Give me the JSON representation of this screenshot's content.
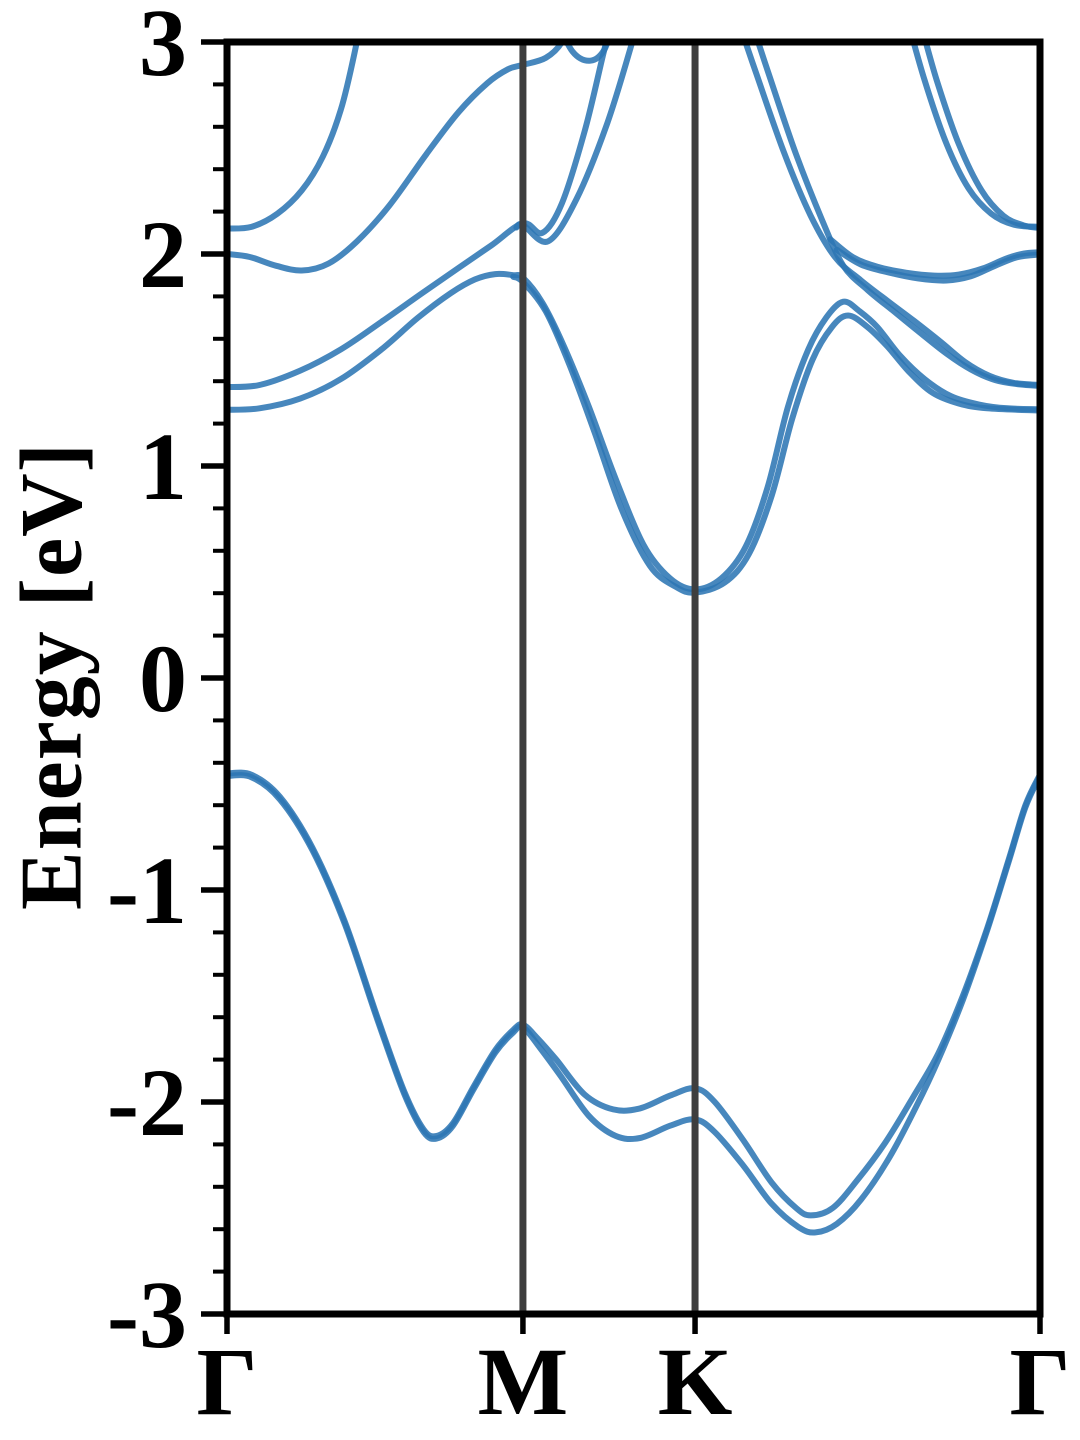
{
  "chart_data": {
    "type": "line",
    "title": "",
    "xlabel": "",
    "ylabel": "Energy [eV]",
    "ylim": [
      -3,
      3
    ],
    "grid": false,
    "legend": "none",
    "description": "Electronic band structure along the high-symmetry path Gamma-M-K-Gamma; blue spin-orbit-split bands, conduction band minimum ~0.4 eV at K, valence band maximum ~-0.45 eV at Gamma",
    "colors": {
      "band": "#2E76B4",
      "symmetry_line": "#3E3E3E",
      "axis": "#000000",
      "background": "#FFFFFF"
    },
    "band_opacity": 0.88,
    "yticks": [
      {
        "value": 3,
        "label": "3"
      },
      {
        "value": 2,
        "label": "2"
      },
      {
        "value": 1,
        "label": "1"
      },
      {
        "value": 0,
        "label": "0"
      },
      {
        "value": -1,
        "label": "-1"
      },
      {
        "value": -2,
        "label": "-2"
      },
      {
        "value": -3,
        "label": "-3"
      }
    ],
    "minor_tick_step": 0.2,
    "xticks": [
      {
        "label": "Γ",
        "x": 0
      },
      {
        "label": "M",
        "x": 0.364
      },
      {
        "label": "K",
        "x": 0.5757
      },
      {
        "label": "Γ",
        "x": 1
      }
    ],
    "vertical_lines": [
      0.364,
      0.5757
    ],
    "series": [
      {
        "name": "valence-upper",
        "points": [
          [
            0,
            -0.45
          ],
          [
            0.03,
            -0.456
          ],
          [
            0.065,
            -0.56
          ],
          [
            0.105,
            -0.8
          ],
          [
            0.145,
            -1.15
          ],
          [
            0.185,
            -1.6
          ],
          [
            0.218,
            -1.95
          ],
          [
            0.242,
            -2.13
          ],
          [
            0.258,
            -2.16
          ],
          [
            0.278,
            -2.1
          ],
          [
            0.303,
            -1.93
          ],
          [
            0.33,
            -1.755
          ],
          [
            0.352,
            -1.66
          ],
          [
            0.364,
            -1.635
          ],
          [
            0.382,
            -1.7
          ],
          [
            0.405,
            -1.8
          ],
          [
            0.44,
            -1.965
          ],
          [
            0.475,
            -2.035
          ],
          [
            0.508,
            -2.03
          ],
          [
            0.545,
            -1.97
          ],
          [
            0.5757,
            -1.935
          ],
          [
            0.6,
            -2.0
          ],
          [
            0.635,
            -2.18
          ],
          [
            0.67,
            -2.38
          ],
          [
            0.7,
            -2.5
          ],
          [
            0.718,
            -2.535
          ],
          [
            0.745,
            -2.5
          ],
          [
            0.775,
            -2.37
          ],
          [
            0.81,
            -2.19
          ],
          [
            0.845,
            -1.97
          ],
          [
            0.875,
            -1.77
          ],
          [
            0.905,
            -1.5
          ],
          [
            0.935,
            -1.18
          ],
          [
            0.962,
            -0.85
          ],
          [
            0.982,
            -0.6
          ],
          [
            1,
            -0.455
          ]
        ]
      },
      {
        "name": "valence-lower",
        "points": [
          [
            0,
            -0.462
          ],
          [
            0.03,
            -0.468
          ],
          [
            0.065,
            -0.572
          ],
          [
            0.105,
            -0.812
          ],
          [
            0.145,
            -1.162
          ],
          [
            0.185,
            -1.612
          ],
          [
            0.218,
            -1.962
          ],
          [
            0.242,
            -2.142
          ],
          [
            0.258,
            -2.172
          ],
          [
            0.278,
            -2.112
          ],
          [
            0.303,
            -1.942
          ],
          [
            0.33,
            -1.767
          ],
          [
            0.352,
            -1.672
          ],
          [
            0.364,
            -1.647
          ],
          [
            0.385,
            -1.745
          ],
          [
            0.41,
            -1.875
          ],
          [
            0.445,
            -2.065
          ],
          [
            0.478,
            -2.16
          ],
          [
            0.508,
            -2.17
          ],
          [
            0.545,
            -2.112
          ],
          [
            0.5757,
            -2.082
          ],
          [
            0.6,
            -2.142
          ],
          [
            0.635,
            -2.3
          ],
          [
            0.67,
            -2.48
          ],
          [
            0.703,
            -2.59
          ],
          [
            0.724,
            -2.615
          ],
          [
            0.75,
            -2.575
          ],
          [
            0.78,
            -2.46
          ],
          [
            0.815,
            -2.26
          ],
          [
            0.848,
            -2.02
          ],
          [
            0.875,
            -1.8
          ],
          [
            0.905,
            -1.52
          ],
          [
            0.935,
            -1.19
          ],
          [
            0.962,
            -0.86
          ],
          [
            0.982,
            -0.61
          ],
          [
            1,
            -0.462
          ]
        ]
      },
      {
        "name": "conduction1-upper",
        "points": [
          [
            0,
            1.265
          ],
          [
            0.04,
            1.272
          ],
          [
            0.09,
            1.318
          ],
          [
            0.14,
            1.41
          ],
          [
            0.19,
            1.55
          ],
          [
            0.235,
            1.7
          ],
          [
            0.275,
            1.815
          ],
          [
            0.305,
            1.88
          ],
          [
            0.33,
            1.905
          ],
          [
            0.352,
            1.9
          ],
          [
            0.364,
            1.888
          ],
          [
            0.388,
            1.77
          ],
          [
            0.415,
            1.56
          ],
          [
            0.445,
            1.28
          ],
          [
            0.478,
            0.94
          ],
          [
            0.512,
            0.63
          ],
          [
            0.545,
            0.47
          ],
          [
            0.5757,
            0.418
          ],
          [
            0.608,
            0.47
          ],
          [
            0.638,
            0.62
          ],
          [
            0.665,
            0.9
          ],
          [
            0.69,
            1.28
          ],
          [
            0.715,
            1.55
          ],
          [
            0.737,
            1.7
          ],
          [
            0.758,
            1.775
          ],
          [
            0.778,
            1.73
          ],
          [
            0.8,
            1.655
          ],
          [
            0.828,
            1.52
          ],
          [
            0.858,
            1.41
          ],
          [
            0.89,
            1.33
          ],
          [
            0.925,
            1.29
          ],
          [
            0.96,
            1.272
          ],
          [
            1,
            1.268
          ]
        ]
      },
      {
        "name": "conduction1-lower",
        "points": [
          [
            0.352,
            1.893
          ],
          [
            0.364,
            1.868
          ],
          [
            0.392,
            1.73
          ],
          [
            0.422,
            1.47
          ],
          [
            0.452,
            1.16
          ],
          [
            0.485,
            0.8
          ],
          [
            0.52,
            0.53
          ],
          [
            0.552,
            0.43
          ],
          [
            0.5757,
            0.403
          ],
          [
            0.612,
            0.45
          ],
          [
            0.642,
            0.585
          ],
          [
            0.67,
            0.86
          ],
          [
            0.695,
            1.22
          ],
          [
            0.72,
            1.5
          ],
          [
            0.744,
            1.655
          ],
          [
            0.764,
            1.71
          ],
          [
            0.788,
            1.655
          ],
          [
            0.812,
            1.565
          ],
          [
            0.84,
            1.44
          ],
          [
            0.868,
            1.345
          ],
          [
            0.9,
            1.295
          ],
          [
            0.935,
            1.272
          ],
          [
            1,
            1.262
          ]
        ]
      },
      {
        "name": "conduction2-main",
        "points": [
          [
            0,
            1.372
          ],
          [
            0.04,
            1.382
          ],
          [
            0.09,
            1.45
          ],
          [
            0.14,
            1.55
          ],
          [
            0.19,
            1.68
          ],
          [
            0.24,
            1.815
          ],
          [
            0.285,
            1.935
          ],
          [
            0.325,
            2.04
          ],
          [
            0.364,
            2.145
          ],
          [
            0.388,
            2.1
          ],
          [
            0.412,
            2.24
          ],
          [
            0.44,
            2.58
          ],
          [
            0.462,
            2.93
          ],
          [
            0.474,
            3.12
          ]
        ]
      },
      {
        "name": "conduction2-split",
        "points": [
          [
            0.356,
            2.125
          ],
          [
            0.364,
            2.138
          ],
          [
            0.395,
            2.06
          ],
          [
            0.43,
            2.26
          ],
          [
            0.468,
            2.62
          ],
          [
            0.5,
            3.02
          ],
          [
            0.508,
            3.14
          ]
        ]
      },
      {
        "name": "conduction3",
        "points": [
          [
            0,
            2.0
          ],
          [
            0.028,
            1.986
          ],
          [
            0.06,
            1.945
          ],
          [
            0.092,
            1.922
          ],
          [
            0.125,
            1.955
          ],
          [
            0.16,
            2.06
          ],
          [
            0.2,
            2.23
          ],
          [
            0.245,
            2.47
          ],
          [
            0.285,
            2.67
          ],
          [
            0.32,
            2.805
          ],
          [
            0.346,
            2.872
          ],
          [
            0.364,
            2.892
          ],
          [
            0.392,
            2.925
          ],
          [
            0.412,
            3.0
          ],
          [
            0.423,
            3.12
          ]
        ]
      },
      {
        "name": "conduction3-arc",
        "points": [
          [
            0.403,
            3.12
          ],
          [
            0.425,
            2.955
          ],
          [
            0.447,
            2.912
          ],
          [
            0.465,
            2.97
          ],
          [
            0.476,
            3.12
          ]
        ]
      },
      {
        "name": "conduction4",
        "points": [
          [
            0,
            2.12
          ],
          [
            0.03,
            2.128
          ],
          [
            0.062,
            2.19
          ],
          [
            0.092,
            2.3
          ],
          [
            0.118,
            2.46
          ],
          [
            0.14,
            2.68
          ],
          [
            0.157,
            2.95
          ],
          [
            0.165,
            3.12
          ]
        ]
      },
      {
        "name": "kgamma-steep-upper",
        "points": [
          [
            0.627,
            3.12
          ],
          [
            0.652,
            2.84
          ],
          [
            0.685,
            2.48
          ],
          [
            0.718,
            2.18
          ],
          [
            0.748,
            1.985
          ],
          [
            0.78,
            1.875
          ],
          [
            0.812,
            1.78
          ],
          [
            0.845,
            1.685
          ],
          [
            0.878,
            1.585
          ],
          [
            0.908,
            1.49
          ],
          [
            0.938,
            1.425
          ],
          [
            0.968,
            1.392
          ],
          [
            1,
            1.382
          ]
        ]
      },
      {
        "name": "kgamma-steep-lower",
        "points": [
          [
            0.643,
            3.12
          ],
          [
            0.668,
            2.83
          ],
          [
            0.7,
            2.47
          ],
          [
            0.732,
            2.16
          ],
          [
            0.758,
            1.945
          ],
          [
            0.788,
            1.83
          ],
          [
            0.82,
            1.73
          ],
          [
            0.852,
            1.63
          ],
          [
            0.885,
            1.53
          ],
          [
            0.915,
            1.455
          ],
          [
            0.945,
            1.405
          ],
          [
            0.975,
            1.385
          ],
          [
            1,
            1.378
          ]
        ]
      },
      {
        "name": "kgamma-wiggle-upper",
        "points": [
          [
            0.742,
            2.07
          ],
          [
            0.77,
            1.985
          ],
          [
            0.8,
            1.94
          ],
          [
            0.835,
            1.912
          ],
          [
            0.87,
            1.898
          ],
          [
            0.9,
            1.903
          ],
          [
            0.93,
            1.932
          ],
          [
            0.958,
            1.978
          ],
          [
            0.98,
            2.002
          ],
          [
            1,
            2.008
          ]
        ]
      },
      {
        "name": "kgamma-wiggle-lower",
        "points": [
          [
            0.75,
            2.02
          ],
          [
            0.78,
            1.95
          ],
          [
            0.815,
            1.912
          ],
          [
            0.85,
            1.885
          ],
          [
            0.885,
            1.875
          ],
          [
            0.915,
            1.895
          ],
          [
            0.945,
            1.945
          ],
          [
            0.972,
            1.985
          ],
          [
            1,
            1.998
          ]
        ]
      },
      {
        "name": "kgamma-top-upper",
        "points": [
          [
            0.836,
            3.12
          ],
          [
            0.858,
            2.82
          ],
          [
            0.885,
            2.52
          ],
          [
            0.912,
            2.31
          ],
          [
            0.94,
            2.19
          ],
          [
            0.968,
            2.138
          ],
          [
            1,
            2.128
          ]
        ]
      },
      {
        "name": "kgamma-top-lower",
        "points": [
          [
            0.851,
            3.12
          ],
          [
            0.873,
            2.82
          ],
          [
            0.9,
            2.52
          ],
          [
            0.928,
            2.3
          ],
          [
            0.955,
            2.18
          ],
          [
            0.98,
            2.135
          ],
          [
            1,
            2.122
          ]
        ]
      }
    ]
  }
}
